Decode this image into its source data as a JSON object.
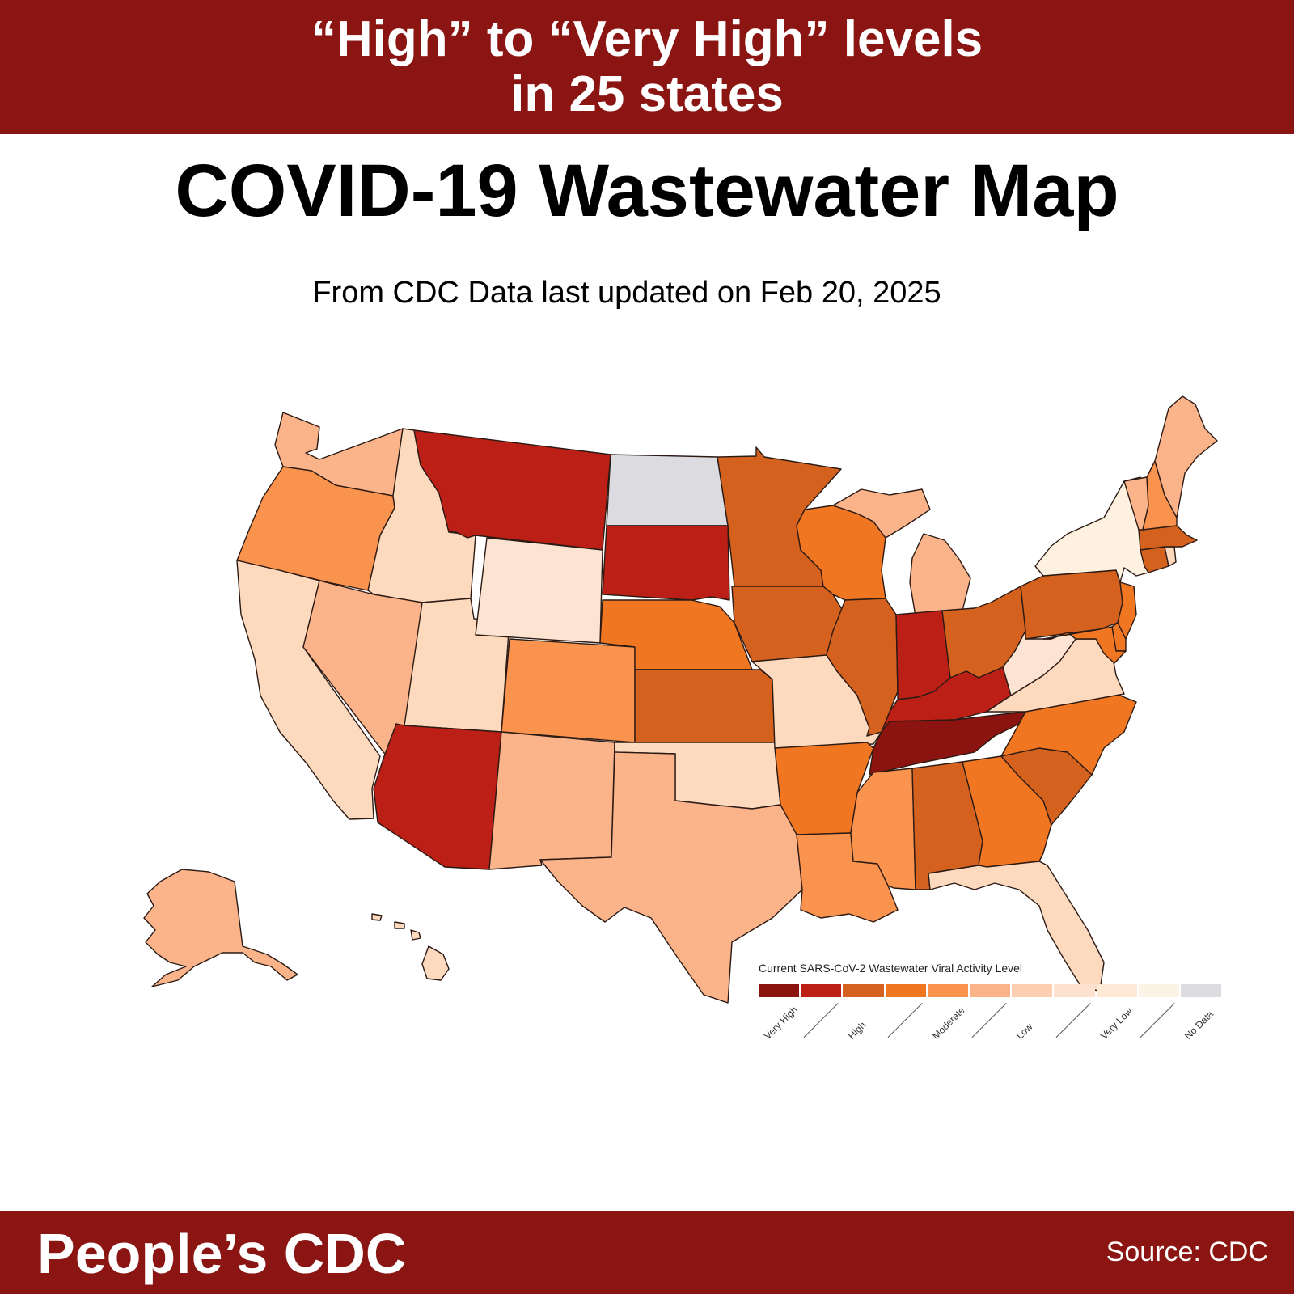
{
  "banner": {
    "line1": "“High” to “Very High” levels",
    "line2": "in 25 states"
  },
  "title": "COVID-19 Wastewater Map",
  "subtitle": "From CDC Data last updated on Feb 20, 2025",
  "legend": {
    "title": "Current SARS-CoV-2 Wastewater Viral Activity Level",
    "segment_colors": [
      "#8c1410",
      "#bb1f16",
      "#d4621e",
      "#f07622",
      "#fa934d",
      "#fbb38a",
      "#fdcfb0",
      "#fde2d0",
      "#fde9d6",
      "#fdf2e6",
      "#dcdce0"
    ],
    "labels": [
      "Very High",
      "High",
      "Moderate",
      "Low",
      "Very Low",
      "No Data"
    ]
  },
  "levels": {
    "very_high": "#8c1410",
    "high_dark": "#bb1f16",
    "high": "#d4621e",
    "moderate_high": "#f07622",
    "moderate": "#fa934d",
    "low_high": "#fbb38a",
    "low": "#fdd9bd",
    "very_low": "#fde4d2",
    "very_low_light": "#fef1df",
    "no_data": "#dcdce0"
  },
  "states": [
    {
      "name": "WA",
      "level": "low_high"
    },
    {
      "name": "OR",
      "level": "moderate"
    },
    {
      "name": "CA",
      "level": "low"
    },
    {
      "name": "ID",
      "level": "low"
    },
    {
      "name": "NV",
      "level": "low_high"
    },
    {
      "name": "UT",
      "level": "low"
    },
    {
      "name": "AZ",
      "level": "high_dark"
    },
    {
      "name": "MT",
      "level": "high_dark"
    },
    {
      "name": "WY",
      "level": "very_low"
    },
    {
      "name": "CO",
      "level": "moderate"
    },
    {
      "name": "NM",
      "level": "low_high"
    },
    {
      "name": "ND",
      "level": "no_data"
    },
    {
      "name": "SD",
      "level": "high_dark"
    },
    {
      "name": "NE",
      "level": "moderate_high"
    },
    {
      "name": "KS",
      "level": "high"
    },
    {
      "name": "OK",
      "level": "low"
    },
    {
      "name": "TX",
      "level": "low_high"
    },
    {
      "name": "MN",
      "level": "high"
    },
    {
      "name": "IA",
      "level": "high"
    },
    {
      "name": "MO",
      "level": "low"
    },
    {
      "name": "AR",
      "level": "moderate_high"
    },
    {
      "name": "LA",
      "level": "moderate"
    },
    {
      "name": "WI",
      "level": "moderate_high"
    },
    {
      "name": "IL",
      "level": "high"
    },
    {
      "name": "MI",
      "level": "low_high"
    },
    {
      "name": "IN",
      "level": "high_dark"
    },
    {
      "name": "OH",
      "level": "high"
    },
    {
      "name": "KY",
      "level": "high_dark"
    },
    {
      "name": "TN",
      "level": "very_high"
    },
    {
      "name": "MS",
      "level": "moderate"
    },
    {
      "name": "AL",
      "level": "high"
    },
    {
      "name": "GA",
      "level": "moderate_high"
    },
    {
      "name": "FL",
      "level": "low"
    },
    {
      "name": "SC",
      "level": "high"
    },
    {
      "name": "NC",
      "level": "moderate_high"
    },
    {
      "name": "VA",
      "level": "low"
    },
    {
      "name": "WV",
      "level": "very_low"
    },
    {
      "name": "PA",
      "level": "high"
    },
    {
      "name": "NY",
      "level": "very_low_light"
    },
    {
      "name": "NJ",
      "level": "moderate_high"
    },
    {
      "name": "DE",
      "level": "moderate_high"
    },
    {
      "name": "MD",
      "level": "moderate_high"
    },
    {
      "name": "CT",
      "level": "high"
    },
    {
      "name": "RI",
      "level": "low"
    },
    {
      "name": "MA",
      "level": "high"
    },
    {
      "name": "VT",
      "level": "low_high"
    },
    {
      "name": "NH",
      "level": "moderate"
    },
    {
      "name": "ME",
      "level": "low_high"
    },
    {
      "name": "AK",
      "level": "low_high"
    },
    {
      "name": "HI",
      "level": "low"
    }
  ],
  "footer": {
    "brand": "People’s CDC",
    "source": "Source: CDC"
  }
}
